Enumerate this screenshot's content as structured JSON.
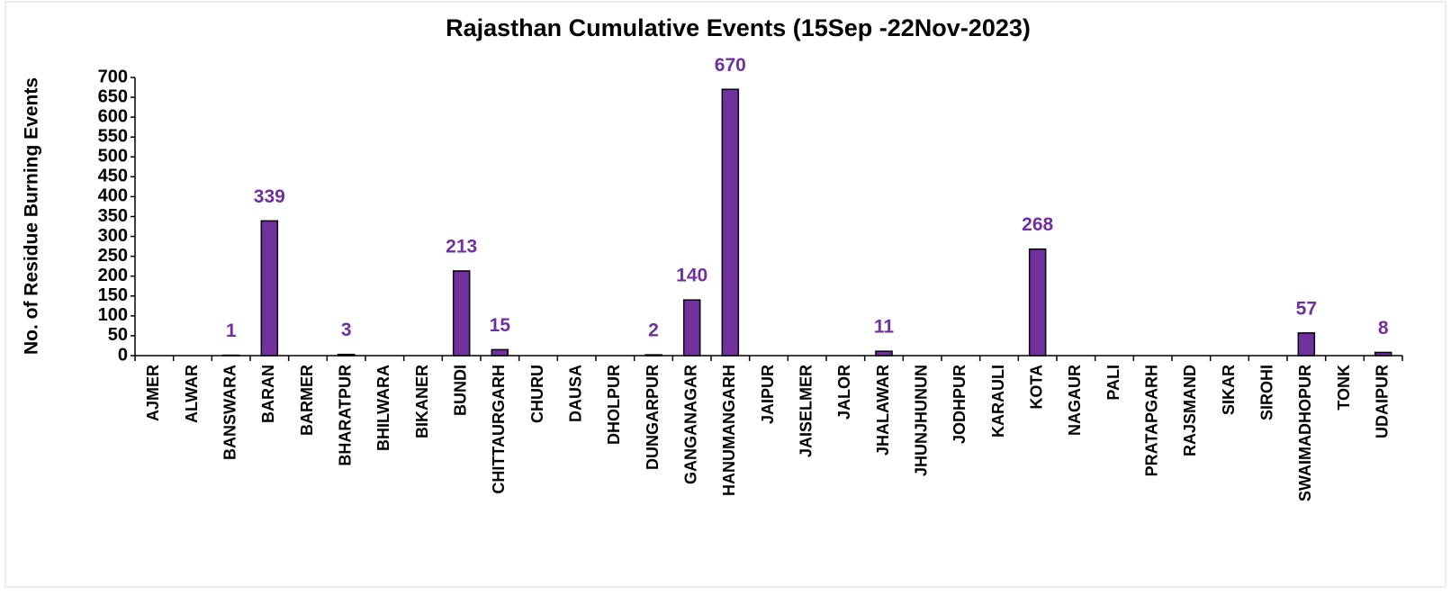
{
  "chart_data": {
    "type": "bar",
    "title": "Rajasthan Cumulative Events (15Sep -22Nov-2023)",
    "y_label": "No. of Residue Burning Events",
    "categories": [
      "AJMER",
      "ALWAR",
      "BANSWARA",
      "BARAN",
      "BARMER",
      "BHARATPUR",
      "BHILWARA",
      "BIKANER",
      "BUNDI",
      "CHITTAURGARH",
      "CHURU",
      "DAUSA",
      "DHOLPUR",
      "DUNGARPUR",
      "GANGANAGAR",
      "HANUMANGARH",
      "JAIPUR",
      "JAISELMER",
      "JALOR",
      "JHALAWAR",
      "JHUNJHUNUN",
      "JODHPUR",
      "KARAULI",
      "KOTA",
      "NAGAUR",
      "PALI",
      "PRATAPGARH",
      "RAJSMAND",
      "SIKAR",
      "SIROHI",
      "SWAIMADHOPUR",
      "TONK",
      "UDAIPUR"
    ],
    "values": [
      0,
      0,
      1,
      339,
      0,
      3,
      0,
      0,
      213,
      15,
      0,
      0,
      0,
      2,
      140,
      670,
      0,
      0,
      0,
      11,
      0,
      0,
      0,
      268,
      0,
      0,
      0,
      0,
      0,
      0,
      57,
      0,
      8
    ],
    "color": "#7030a0",
    "label_color": "#7030a0",
    "ylim": [
      0,
      700
    ],
    "yticks": [
      0,
      50,
      100,
      150,
      200,
      250,
      300,
      350,
      400,
      450,
      500,
      550,
      600,
      650,
      700
    ],
    "grid": false
  }
}
